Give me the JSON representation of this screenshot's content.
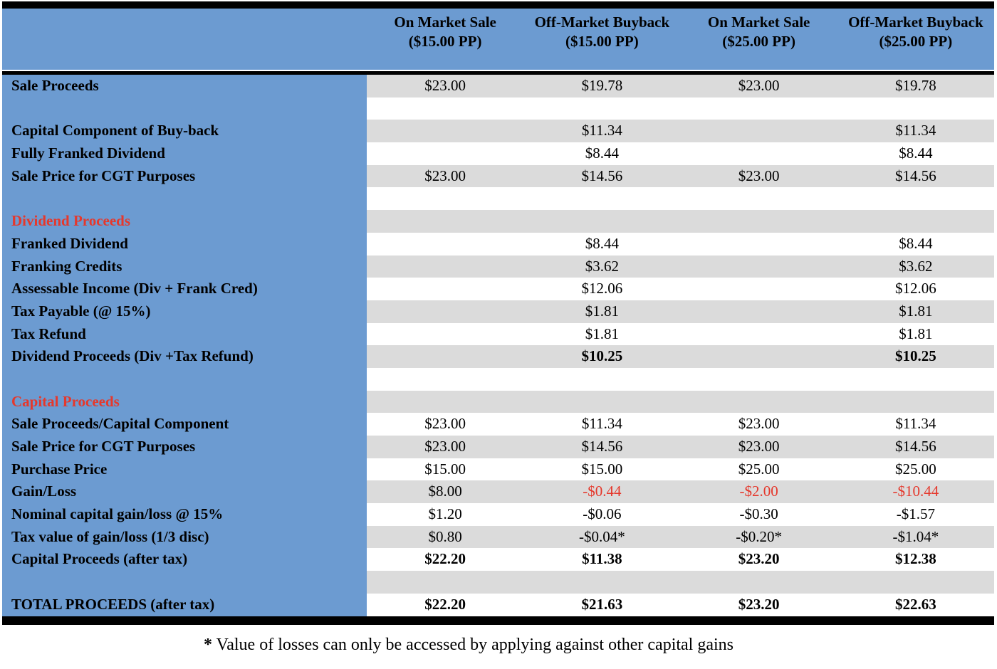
{
  "colors": {
    "header_blue": "#6C9BD1",
    "stripe_gray": "#DBDBDB",
    "accent_red": "#E5382C",
    "border_black": "#000000"
  },
  "header": {
    "columns": [
      "On Market Sale ($15.00 PP)",
      "Off-Market Buyback ($15.00 PP)",
      "On Market Sale ($25.00 PP)",
      "Off-Market Buyback ($25.00 PP)"
    ]
  },
  "rows": [
    {
      "label": "Sale Proceeds",
      "values": [
        "$23.00",
        "$19.78",
        "$23.00",
        "$19.78"
      ]
    },
    {
      "label": "",
      "values": [
        "",
        "",
        "",
        ""
      ],
      "blank": true
    },
    {
      "label": "Capital Component of Buy-back",
      "values": [
        "",
        "$11.34",
        "",
        "$11.34"
      ]
    },
    {
      "label": "Fully Franked Dividend",
      "values": [
        "",
        "$8.44",
        "",
        "$8.44"
      ]
    },
    {
      "label": "Sale Price for CGT Purposes",
      "values": [
        "$23.00",
        "$14.56",
        "$23.00",
        "$14.56"
      ]
    },
    {
      "label": "",
      "values": [
        "",
        "",
        "",
        ""
      ],
      "blank": true
    },
    {
      "label": "Dividend Proceeds",
      "values": [
        "",
        "",
        "",
        ""
      ],
      "section": true
    },
    {
      "label": "Franked Dividend",
      "values": [
        "",
        "$8.44",
        "",
        "$8.44"
      ]
    },
    {
      "label": "Franking Credits",
      "values": [
        "",
        "$3.62",
        "",
        "$3.62"
      ]
    },
    {
      "label": "Assessable Income (Div + Frank Cred)",
      "values": [
        "",
        "$12.06",
        "",
        "$12.06"
      ]
    },
    {
      "label": "Tax Payable (@ 15%)",
      "values": [
        "",
        "$1.81",
        "",
        "$1.81"
      ]
    },
    {
      "label": "Tax Refund",
      "values": [
        "",
        "$1.81",
        "",
        "$1.81"
      ]
    },
    {
      "label": "Dividend Proceeds (Div +Tax Refund)",
      "values": [
        "",
        "$10.25",
        "",
        "$10.25"
      ],
      "bold_values": true
    },
    {
      "label": "",
      "values": [
        "",
        "",
        "",
        ""
      ],
      "blank": true
    },
    {
      "label": "Capital Proceeds",
      "values": [
        "",
        "",
        "",
        ""
      ],
      "section": true
    },
    {
      "label": "Sale Proceeds/Capital Component",
      "values": [
        "$23.00",
        "$11.34",
        "$23.00",
        "$11.34"
      ]
    },
    {
      "label": "Sale Price for CGT Purposes",
      "values": [
        "$23.00",
        "$14.56",
        "$23.00",
        "$14.56"
      ]
    },
    {
      "label": "Purchase Price",
      "values": [
        "$15.00",
        "$15.00",
        "$25.00",
        "$25.00"
      ]
    },
    {
      "label": "Gain/Loss",
      "values": [
        "$8.00",
        "-$0.44",
        "-$2.00",
        "-$10.44"
      ],
      "red_values": [
        1,
        2,
        3
      ]
    },
    {
      "label": "Nominal capital gain/loss @ 15%",
      "values": [
        "$1.20",
        "-$0.06",
        "-$0.30",
        "-$1.57"
      ]
    },
    {
      "label": "Tax value of gain/loss (1/3 disc)",
      "values": [
        "$0.80",
        "-$0.04*",
        "-$0.20*",
        "-$1.04*"
      ]
    },
    {
      "label": "Capital Proceeds (after tax)",
      "values": [
        "$22.20",
        "$11.38",
        "$23.20",
        "$12.38"
      ],
      "bold_values": true
    },
    {
      "label": "",
      "values": [
        "",
        "",
        "",
        ""
      ],
      "blank": true
    },
    {
      "label": "TOTAL PROCEEDS (after tax)",
      "values": [
        "$22.20",
        "$21.63",
        "$23.20",
        "$22.63"
      ],
      "bold_values": true
    }
  ],
  "footnote": {
    "marker": "*",
    "text": "Value of losses can only be accessed by applying against other capital gains"
  }
}
